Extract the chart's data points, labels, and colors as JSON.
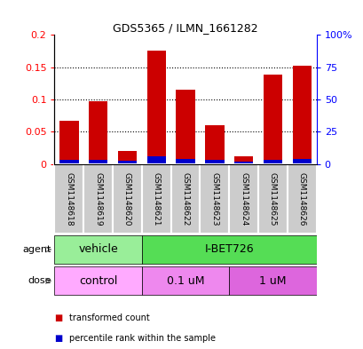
{
  "title": "GDS5365 / ILMN_1661282",
  "samples": [
    "GSM1148618",
    "GSM1148619",
    "GSM1148620",
    "GSM1148621",
    "GSM1148622",
    "GSM1148623",
    "GSM1148624",
    "GSM1148625",
    "GSM1148626"
  ],
  "transformed_counts": [
    0.067,
    0.097,
    0.02,
    0.175,
    0.115,
    0.06,
    0.012,
    0.138,
    0.152
  ],
  "percentile_ranks": [
    0.007,
    0.006,
    0.005,
    0.012,
    0.008,
    0.006,
    0.004,
    0.006,
    0.008
  ],
  "bar_color_red": "#cc0000",
  "bar_color_blue": "#0000cc",
  "ylim_left": [
    0,
    0.2
  ],
  "ylim_right": [
    0,
    100
  ],
  "yticks_left": [
    0,
    0.05,
    0.1,
    0.15,
    0.2
  ],
  "yticks_right": [
    0,
    25,
    50,
    75,
    100
  ],
  "ytick_labels_left": [
    "0",
    "0.05",
    "0.1",
    "0.15",
    "0.2"
  ],
  "ytick_labels_right": [
    "0",
    "25",
    "50",
    "75",
    "100%"
  ],
  "agent_groups": [
    {
      "label": "vehicle",
      "start": 0,
      "end": 3,
      "color": "#99ee99"
    },
    {
      "label": "I-BET726",
      "start": 3,
      "end": 9,
      "color": "#55dd55"
    }
  ],
  "dose_groups": [
    {
      "label": "control",
      "start": 0,
      "end": 3,
      "color": "#ffaaff"
    },
    {
      "label": "0.1 uM",
      "start": 3,
      "end": 6,
      "color": "#ee88ee"
    },
    {
      "label": "1 uM",
      "start": 6,
      "end": 9,
      "color": "#dd66dd"
    }
  ],
  "sample_bg_color": "#cccccc",
  "sample_border_color": "#ffffff",
  "legend_red_label": "transformed count",
  "legend_blue_label": "percentile rank within the sample",
  "bar_width": 0.65,
  "grid_color": "black",
  "title_fontsize": 9,
  "tick_fontsize": 8,
  "sample_fontsize": 6.5,
  "annot_fontsize": 9
}
